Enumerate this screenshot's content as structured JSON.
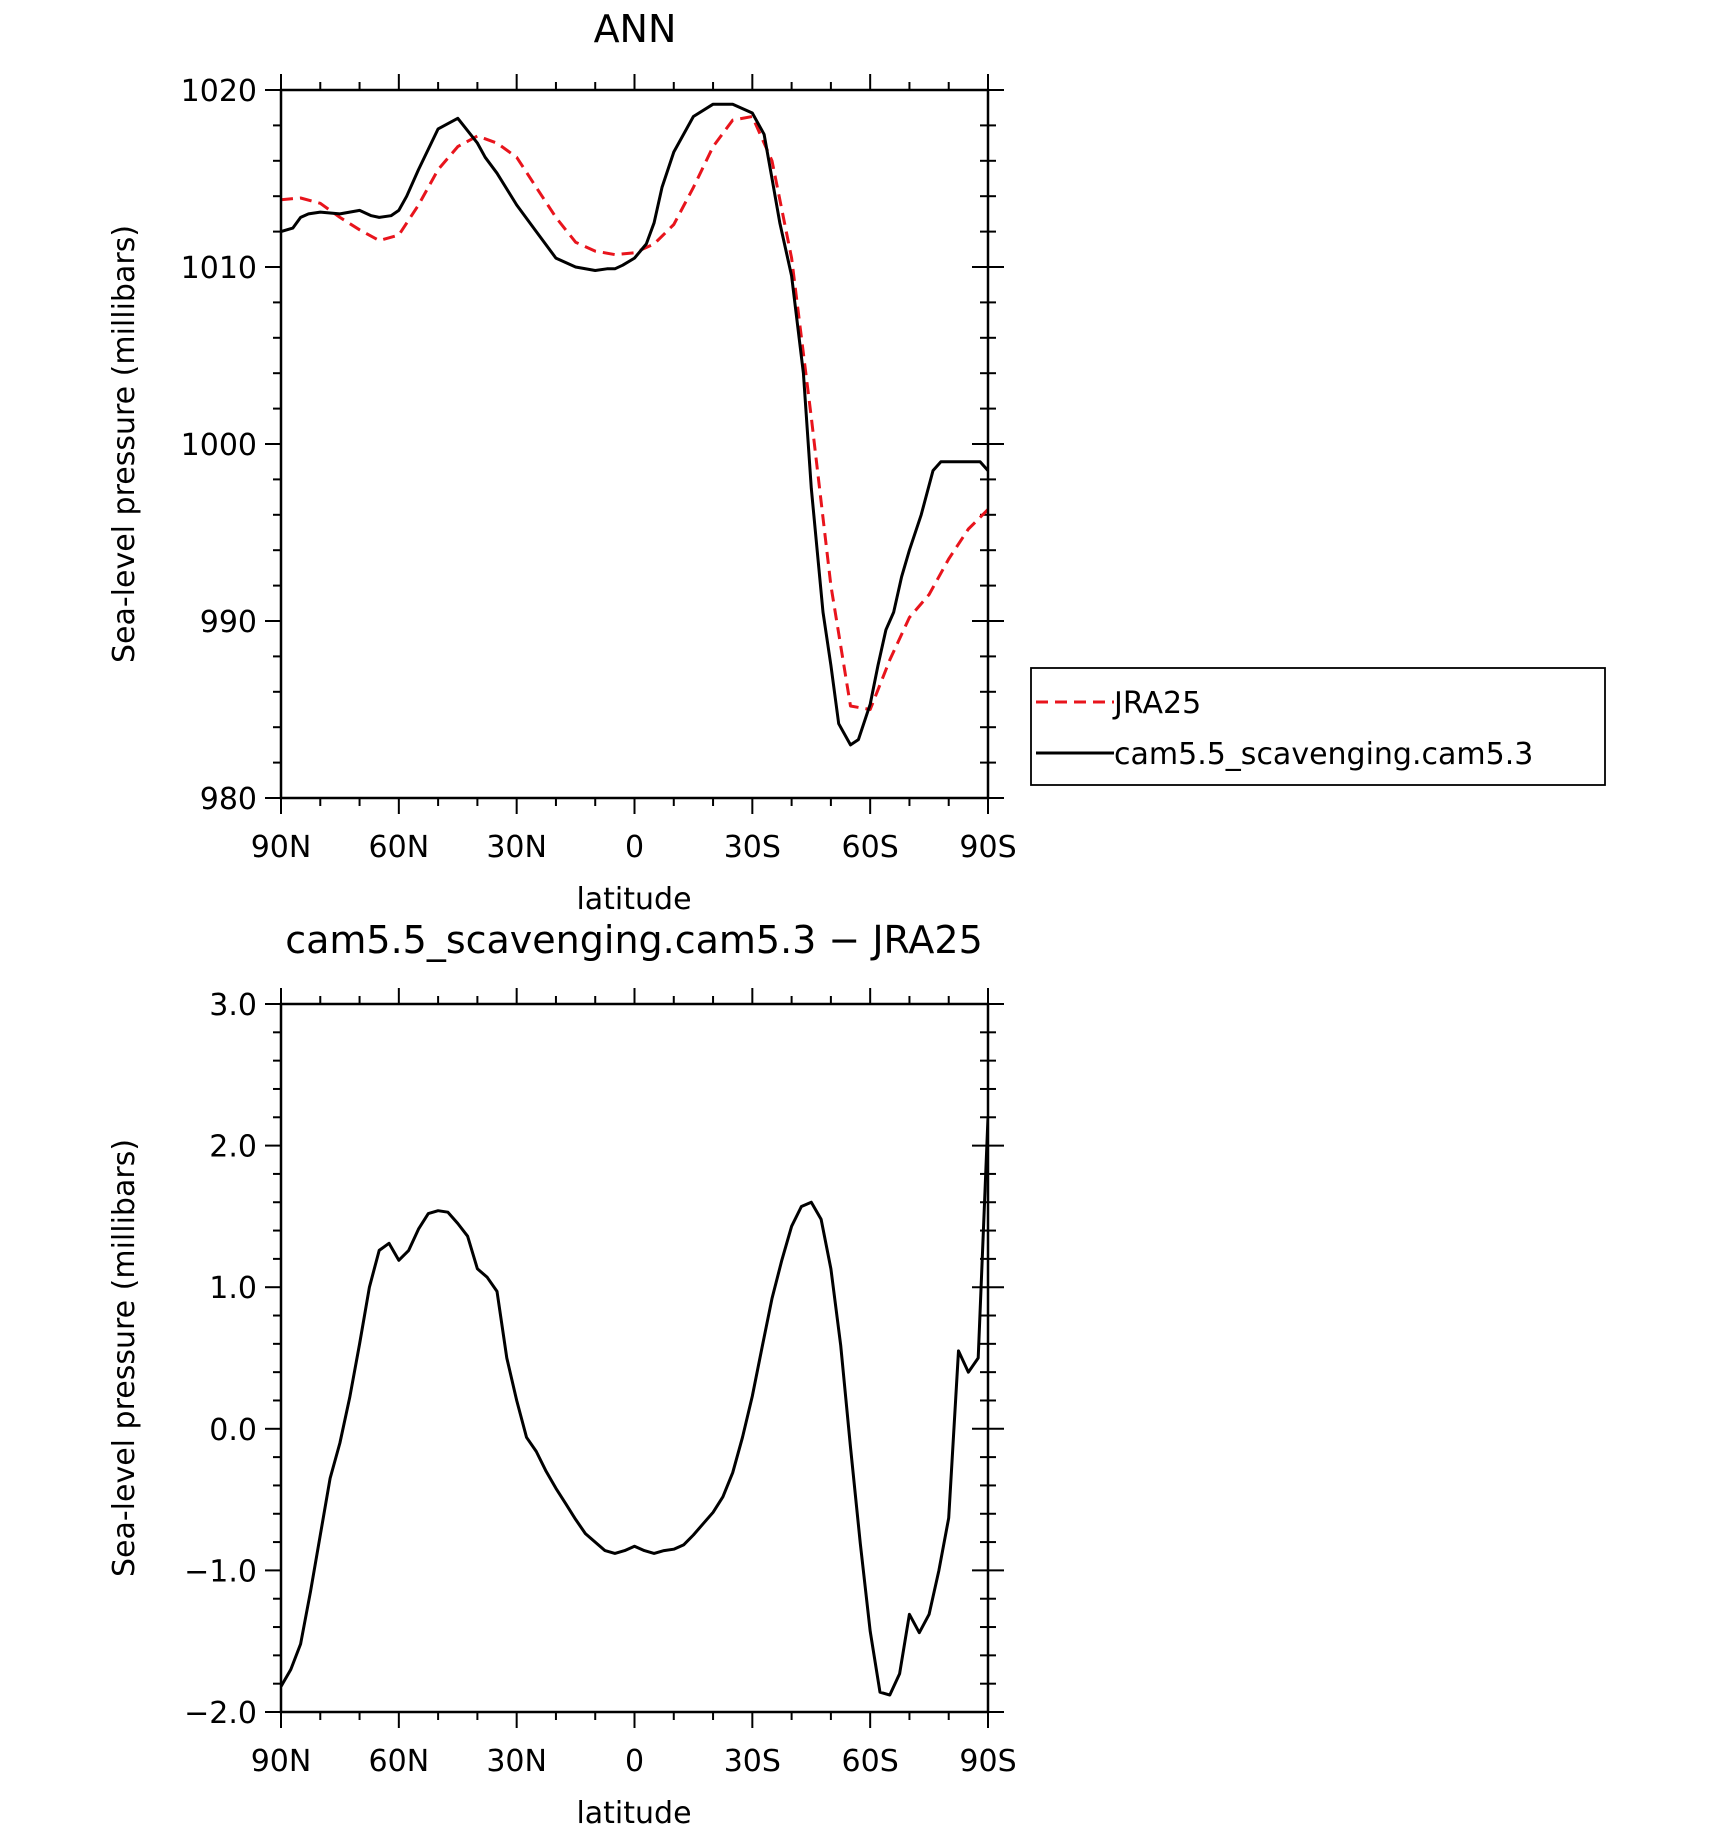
{
  "chart_data": [
    {
      "type": "line",
      "title": "ANN",
      "xlabel": "latitude",
      "ylabel": "Sea-level pressure (millibars)",
      "xlim": [
        90,
        -90
      ],
      "ylim": [
        980,
        1020
      ],
      "x_ticks": [
        90,
        60,
        30,
        0,
        -30,
        -60,
        -90
      ],
      "x_tick_labels": [
        "90N",
        "60N",
        "30N",
        "0",
        "30S",
        "60S",
        "90S"
      ],
      "y_ticks": [
        980,
        990,
        1000,
        1010,
        1020
      ],
      "y_tick_labels": [
        "980",
        "990",
        "1000",
        "1010",
        "1020"
      ],
      "legend": {
        "placement": "right",
        "entries": [
          {
            "label": "JRA25",
            "color": "#e8141c",
            "dash": "dashed"
          },
          {
            "label": "cam5.5_scavenging.cam5.3",
            "color": "#000000",
            "dash": "solid"
          }
        ]
      },
      "series": [
        {
          "name": "JRA25",
          "color": "#e8141c",
          "dash": "dashed",
          "x": [
            90,
            85,
            80,
            75,
            70,
            65,
            60,
            55,
            50,
            45,
            40,
            35,
            30,
            25,
            20,
            15,
            10,
            5,
            0,
            -5,
            -10,
            -15,
            -20,
            -25,
            -30,
            -35,
            -40,
            -45,
            -50,
            -55,
            -60,
            -65,
            -70,
            -75,
            -80,
            -85,
            -90
          ],
          "y": [
            1013.8,
            1013.9,
            1013.6,
            1012.8,
            1012.1,
            1011.5,
            1011.8,
            1013.5,
            1015.5,
            1016.8,
            1017.4,
            1017.0,
            1016.2,
            1014.5,
            1012.8,
            1011.4,
            1010.9,
            1010.7,
            1010.8,
            1011.3,
            1012.4,
            1014.5,
            1016.8,
            1018.3,
            1018.5,
            1016.0,
            1010.5,
            1001.5,
            992.0,
            985.2,
            985.0,
            987.8,
            990.2,
            991.5,
            993.5,
            995.2,
            996.3
          ]
        },
        {
          "name": "cam5.5_scavenging.cam5.3",
          "color": "#000000",
          "dash": "solid",
          "x": [
            90,
            87,
            85,
            83,
            80,
            75,
            70,
            67,
            65,
            62,
            60,
            58,
            55,
            50,
            45,
            40,
            38,
            35,
            30,
            25,
            20,
            15,
            10,
            7,
            5,
            3,
            0,
            -3,
            -5,
            -7,
            -10,
            -15,
            -20,
            -25,
            -30,
            -33,
            -35,
            -37,
            -40,
            -43,
            -45,
            -48,
            -50,
            -52,
            -55,
            -57,
            -60,
            -62,
            -64,
            -66,
            -68,
            -70,
            -73,
            -76,
            -78,
            -80,
            -82,
            -85,
            -88,
            -90
          ],
          "y": [
            1012.0,
            1012.2,
            1012.8,
            1013.0,
            1013.1,
            1013.0,
            1013.2,
            1012.9,
            1012.8,
            1012.9,
            1013.2,
            1014.0,
            1015.5,
            1017.8,
            1018.4,
            1017.0,
            1016.2,
            1015.3,
            1013.5,
            1012.0,
            1010.5,
            1010.0,
            1009.8,
            1009.9,
            1009.9,
            1010.1,
            1010.5,
            1011.3,
            1012.5,
            1014.5,
            1016.5,
            1018.5,
            1019.2,
            1019.2,
            1018.7,
            1017.5,
            1015.0,
            1012.5,
            1009.5,
            1004.0,
            997.5,
            990.5,
            987.5,
            984.2,
            983.0,
            983.3,
            985.3,
            987.5,
            989.5,
            990.5,
            992.5,
            994.0,
            996.0,
            998.5,
            999.0,
            999.0,
            999.0,
            999.0,
            999.0,
            998.5
          ]
        }
      ]
    },
    {
      "type": "line",
      "title": "cam5.5_scavenging.cam5.3 − JRA25",
      "xlabel": "latitude",
      "ylabel": "Sea-level pressure (millibars)",
      "xlim": [
        90,
        -90
      ],
      "ylim": [
        -2.0,
        3.0
      ],
      "x_ticks": [
        90,
        60,
        30,
        0,
        -30,
        -60,
        -90
      ],
      "x_tick_labels": [
        "90N",
        "60N",
        "30N",
        "0",
        "30S",
        "60S",
        "90S"
      ],
      "y_ticks": [
        -2.0,
        -1.0,
        0.0,
        1.0,
        2.0,
        3.0
      ],
      "y_tick_labels": [
        "−2.0",
        "−1.0",
        "0.0",
        "1.0",
        "2.0",
        "3.0"
      ],
      "series": [
        {
          "color": "#000000",
          "dash": "solid",
          "x": [
            90,
            87.5,
            85,
            82.5,
            80,
            77.5,
            75,
            72.5,
            70,
            67.5,
            65,
            62.5,
            60,
            57.5,
            55,
            52.5,
            50,
            47.5,
            45,
            42.5,
            40,
            37.5,
            35,
            32.5,
            30,
            27.5,
            25,
            22.5,
            20,
            17.5,
            15,
            12.5,
            10,
            7.5,
            5,
            2.5,
            0,
            -2.5,
            -5,
            -7.5,
            -10,
            -12.5,
            -15,
            -17.5,
            -20,
            -22.5,
            -25,
            -27.5,
            -30,
            -32.5,
            -35,
            -37.5,
            -40,
            -42.5,
            -45,
            -47.5,
            -50,
            -52.5,
            -55,
            -57.5,
            -60,
            -62.5,
            -65,
            -67.5,
            -70,
            -72.5,
            -75,
            -77.5,
            -80,
            -82.5,
            -85,
            -87.5,
            -90
          ],
          "y": [
            -1.82,
            -1.7,
            -1.52,
            -1.15,
            -0.75,
            -0.35,
            -0.1,
            0.22,
            0.6,
            1.0,
            1.26,
            1.31,
            1.19,
            1.26,
            1.41,
            1.52,
            1.54,
            1.53,
            1.45,
            1.36,
            1.13,
            1.07,
            0.97,
            0.5,
            0.2,
            -0.06,
            -0.16,
            -0.3,
            -0.42,
            -0.53,
            -0.64,
            -0.74,
            -0.8,
            -0.86,
            -0.88,
            -0.86,
            -0.83,
            -0.86,
            -0.88,
            -0.86,
            -0.85,
            -0.82,
            -0.75,
            -0.67,
            -0.59,
            -0.48,
            -0.31,
            -0.06,
            0.23,
            0.58,
            0.92,
            1.19,
            1.43,
            1.57,
            1.6,
            1.48,
            1.13,
            0.59,
            -0.13,
            -0.81,
            -1.43,
            -1.86,
            -1.88,
            -1.73,
            -1.31,
            -1.44,
            -1.31,
            -1.0,
            -0.63,
            0.55,
            0.4,
            0.5,
            2.2
          ]
        }
      ]
    }
  ]
}
